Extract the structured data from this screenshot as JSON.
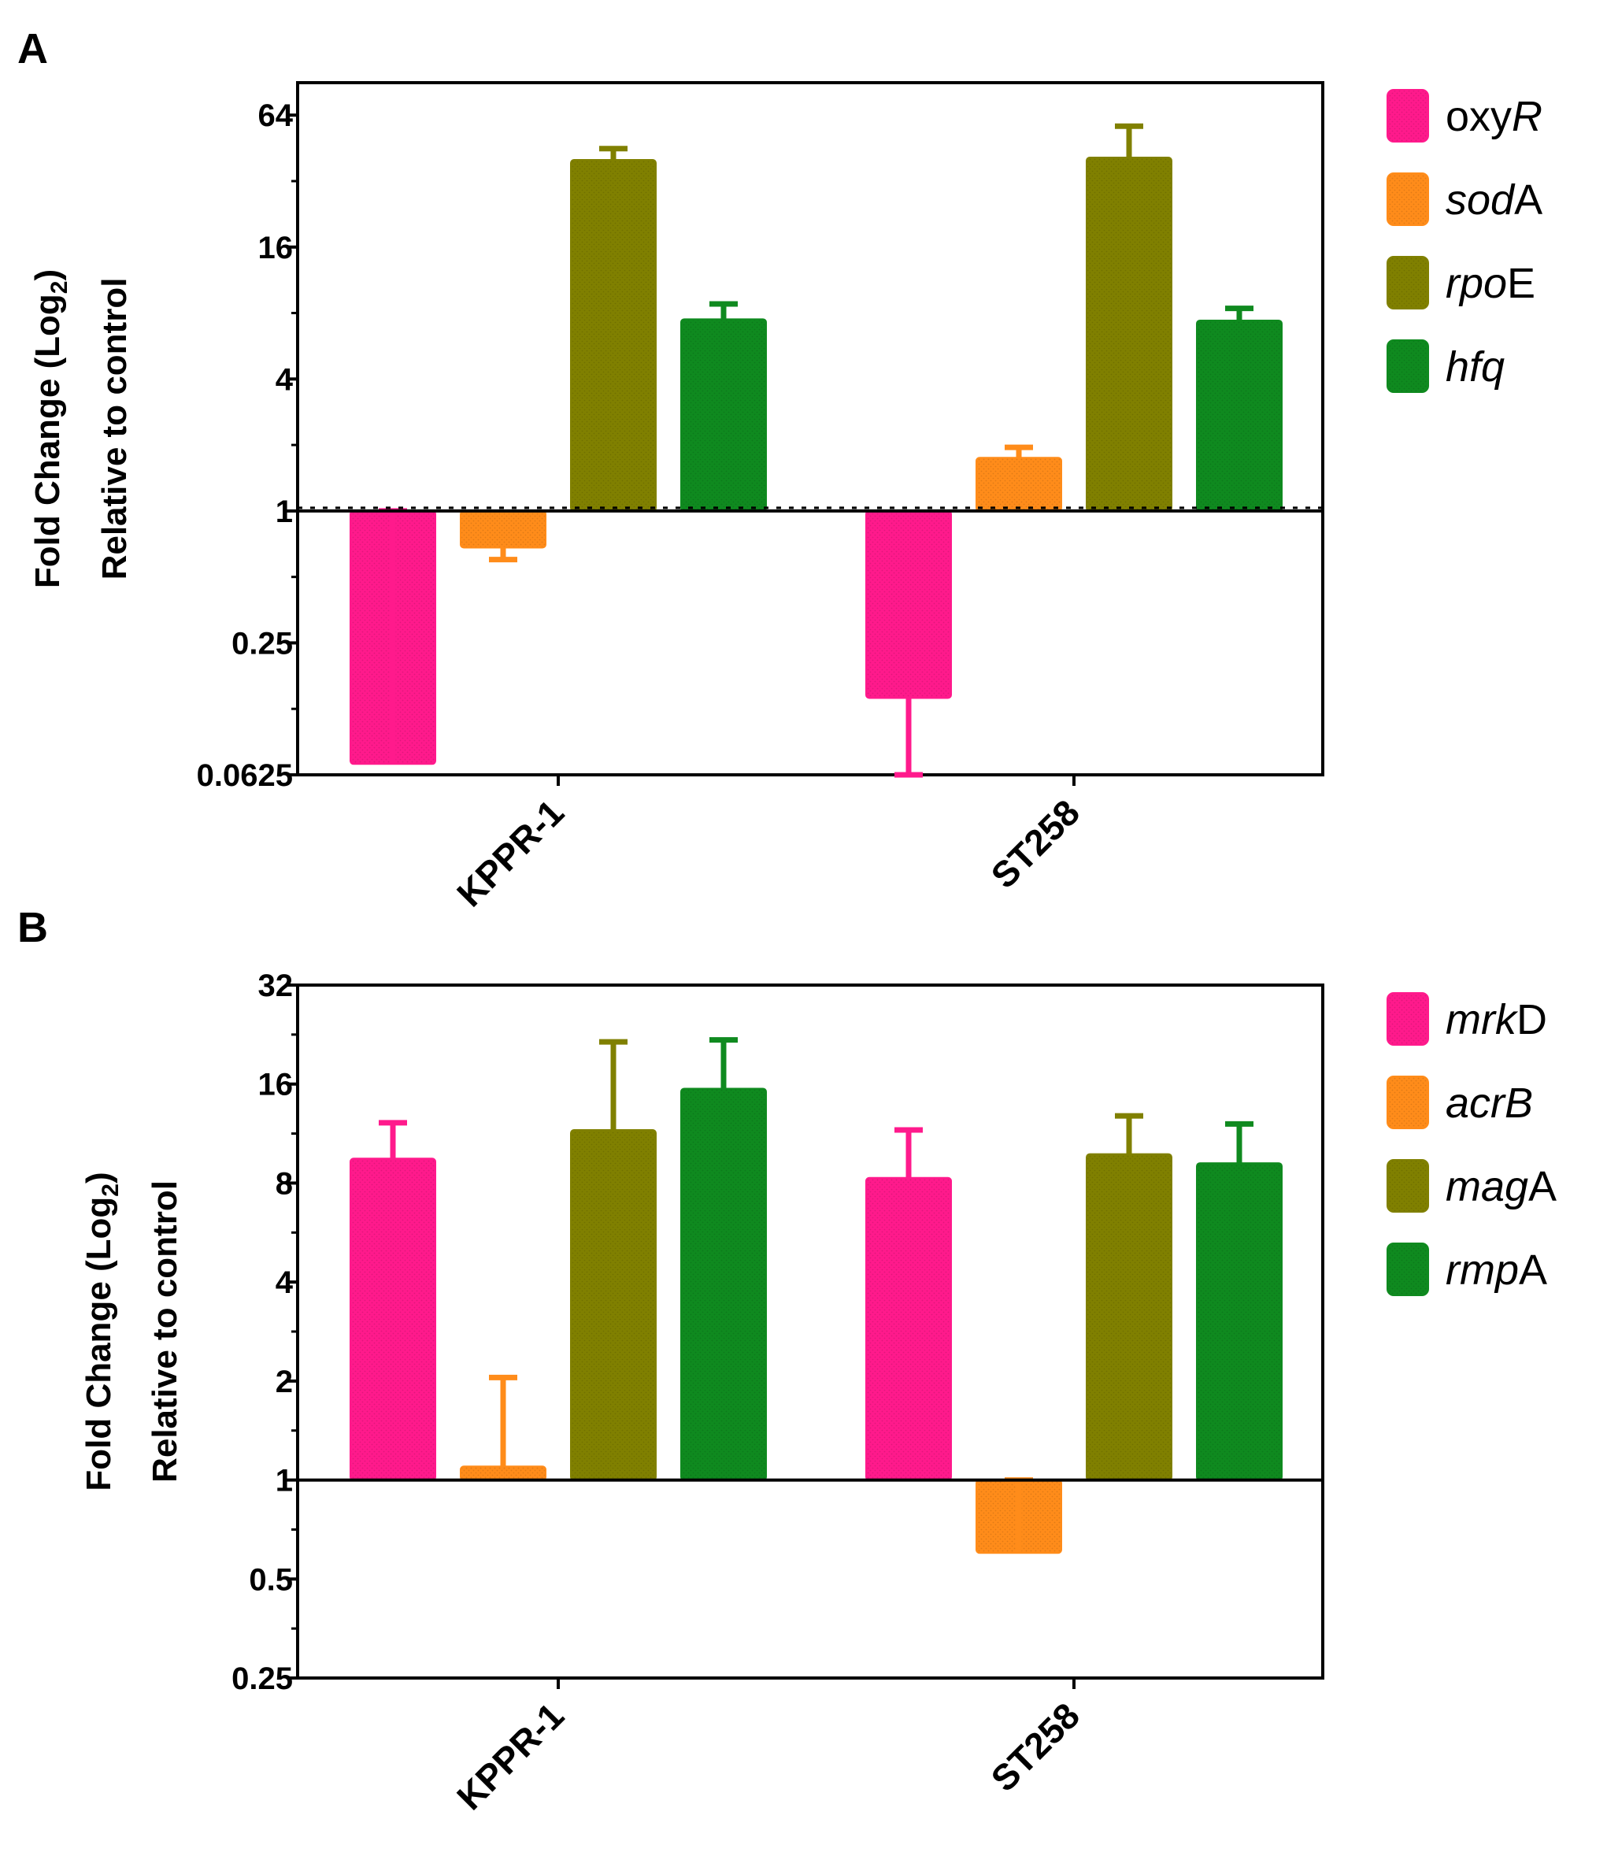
{
  "chart_data": [
    {
      "panel": "A",
      "type": "bar",
      "scale": "log2",
      "ylabel_line1": "Fold Change (Log",
      "ylabel_sub": "2",
      "ylabel_close": ")",
      "ylabel_line2": "Relative to control",
      "yticks": [
        0.0625,
        0.25,
        1,
        4,
        16,
        64
      ],
      "yticklabels": [
        "0.0625",
        "0.25",
        "1",
        "4",
        "16",
        "64"
      ],
      "ylim": [
        0.0625,
        90
      ],
      "baseline": 1,
      "baseline_dashed": true,
      "categories": [
        "KPPR-1",
        "ST258"
      ],
      "series": [
        {
          "name": "oxyR",
          "parts": [
            {
              "t": "oxy",
              "i": false
            },
            {
              "t": "R",
              "i": true
            }
          ],
          "color": "#ff1a8c",
          "values": [
            0.07,
            0.14
          ],
          "errors": [
            1.0,
            0.0625
          ]
        },
        {
          "name": "sodA",
          "parts": [
            {
              "t": "sod",
              "i": true
            },
            {
              "t": "A",
              "i": false
            }
          ],
          "color": "#ff8c1a",
          "values": [
            0.68,
            1.75
          ],
          "errors": [
            0.6,
            1.95
          ]
        },
        {
          "name": "rpoE",
          "parts": [
            {
              "t": "rpo",
              "i": true
            },
            {
              "t": "E",
              "i": false
            }
          ],
          "color": "#808000",
          "values": [
            40,
            41
          ],
          "errors": [
            45,
            57
          ]
        },
        {
          "name": "hfq",
          "parts": [
            {
              "t": "hfq",
              "i": true
            }
          ],
          "color": "#0f8a1f",
          "values": [
            7.5,
            7.4
          ],
          "errors": [
            8.8,
            8.4
          ]
        }
      ]
    },
    {
      "panel": "B",
      "type": "bar",
      "scale": "log2",
      "ylabel_line1": "Fold Change (Log",
      "ylabel_sub": "2",
      "ylabel_close": ")",
      "ylabel_line2": "Relative to control",
      "yticks": [
        0.25,
        0.5,
        1,
        2,
        4,
        8,
        16,
        32
      ],
      "yticklabels": [
        "0.25",
        "0.5",
        "1",
        "2",
        "4",
        "8",
        "16",
        "32"
      ],
      "ylim": [
        0.25,
        32
      ],
      "baseline": 1,
      "baseline_dashed": false,
      "categories": [
        "KPPR-1",
        "ST258"
      ],
      "series": [
        {
          "name": "mrkD",
          "parts": [
            {
              "t": "mrk",
              "i": true
            },
            {
              "t": "D",
              "i": false
            }
          ],
          "color": "#ff1a8c",
          "values": [
            9.5,
            8.3
          ],
          "errors": [
            12.2,
            11.6
          ]
        },
        {
          "name": "acrB",
          "parts": [
            {
              "t": "acrB",
              "i": true
            }
          ],
          "color": "#ff8c1a",
          "values": [
            1.1,
            0.6
          ],
          "errors": [
            2.05,
            1.0
          ]
        },
        {
          "name": "magA",
          "parts": [
            {
              "t": "mag",
              "i": true
            },
            {
              "t": "A",
              "i": false
            }
          ],
          "color": "#808000",
          "values": [
            11.6,
            9.8
          ],
          "errors": [
            21.5,
            12.8
          ]
        },
        {
          "name": "rmpA",
          "parts": [
            {
              "t": "rmp",
              "i": true
            },
            {
              "t": "A",
              "i": false
            }
          ],
          "color": "#0f8a1f",
          "values": [
            15.5,
            9.2
          ],
          "errors": [
            21.8,
            12.1
          ]
        }
      ]
    }
  ]
}
